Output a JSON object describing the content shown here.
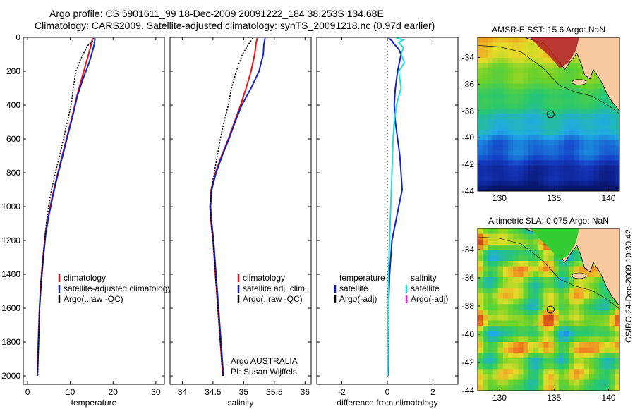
{
  "header": {
    "line1": "Argo profile: CS 5901611_99 18-Dec-2009 20091222_184 38.253S 134.68E",
    "line2": "Climatology: CARS2009. Satellite-adjusted climatology: synTS_20091218.nc (0.97d earlier)"
  },
  "side_label": "CSIRO 24-Dec-2009 10:30:42",
  "colors": {
    "climatology": "#ee1111",
    "satellite": "#1022cc",
    "argo": "#000000",
    "sat_salinity": "#22dddd",
    "argo_adj_salinity": "#dd22dd"
  },
  "chart_data": [
    {
      "type": "line",
      "name": "temperature-profile",
      "xlabel": "temperature",
      "ylabel": "",
      "xlim": [
        -1,
        32
      ],
      "ylim": [
        2050,
        0
      ],
      "xticks": [
        0,
        10,
        20,
        30
      ],
      "yticks": [
        0,
        200,
        400,
        600,
        800,
        1000,
        1200,
        1400,
        1600,
        1800,
        2000
      ],
      "legend": [
        "climatology",
        "satellite-adjusted climatology",
        "Argo(..raw -QC)"
      ],
      "series": [
        {
          "name": "climatology",
          "color": "#ee1111",
          "points": [
            [
              15.2,
              5
            ],
            [
              14.9,
              40
            ],
            [
              14.5,
              80
            ],
            [
              13.7,
              150
            ],
            [
              12.6,
              250
            ],
            [
              11.5,
              350
            ],
            [
              10.6,
              450
            ],
            [
              9.6,
              550
            ],
            [
              8.6,
              650
            ],
            [
              7.6,
              750
            ],
            [
              6.6,
              850
            ],
            [
              5.7,
              950
            ],
            [
              4.9,
              1050
            ],
            [
              4.2,
              1150
            ],
            [
              3.6,
              1300
            ],
            [
              3.1,
              1450
            ],
            [
              2.8,
              1600
            ],
            [
              2.5,
              1800
            ],
            [
              2.3,
              2000
            ]
          ]
        },
        {
          "name": "satellite-adjusted climatology",
          "color": "#1022cc",
          "points": [
            [
              15.8,
              5
            ],
            [
              15.6,
              40
            ],
            [
              15.2,
              80
            ],
            [
              14.4,
              150
            ],
            [
              12.9,
              250
            ],
            [
              11.6,
              350
            ],
            [
              10.7,
              450
            ],
            [
              9.7,
              550
            ],
            [
              8.7,
              650
            ],
            [
              7.7,
              750
            ],
            [
              6.7,
              850
            ],
            [
              5.8,
              950
            ],
            [
              5.0,
              1050
            ],
            [
              4.3,
              1150
            ],
            [
              3.7,
              1300
            ],
            [
              3.2,
              1450
            ],
            [
              2.8,
              1600
            ],
            [
              2.6,
              1800
            ],
            [
              2.3,
              2000
            ]
          ]
        },
        {
          "name": "Argo(..raw -QC)",
          "color": "#000000",
          "points": [
            [
              15.5,
              5
            ],
            [
              15.3,
              20
            ],
            [
              14.2,
              45
            ],
            [
              13.4,
              80
            ],
            [
              12.4,
              130
            ],
            [
              11.3,
              200
            ],
            [
              10.7,
              300
            ],
            [
              10.2,
              400
            ],
            [
              9.3,
              500
            ],
            [
              8.4,
              600
            ],
            [
              7.5,
              700
            ],
            [
              6.5,
              800
            ],
            [
              5.6,
              900
            ],
            [
              4.9,
              1000
            ],
            [
              4.4,
              1100
            ],
            [
              3.8,
              1250
            ],
            [
              3.3,
              1400
            ],
            [
              2.9,
              1550
            ],
            [
              2.7,
              1700
            ],
            [
              2.5,
              1850
            ],
            [
              2.4,
              2000
            ]
          ]
        }
      ]
    },
    {
      "type": "line",
      "name": "salinity-profile",
      "xlabel": "salinity",
      "ylabel": "",
      "xlim": [
        33.8,
        36.1
      ],
      "ylim": [
        2050,
        0
      ],
      "xticks": [
        34,
        34.5,
        35,
        35.5,
        36
      ],
      "legend": [
        "climatology",
        "satellite adj. clim.",
        "Argo(..raw -QC)"
      ],
      "annotation": [
        "Argo AUSTRALIA",
        "PI: Susan Wijffels"
      ],
      "series": [
        {
          "name": "climatology",
          "color": "#ee1111",
          "points": [
            [
              35.22,
              5
            ],
            [
              35.2,
              40
            ],
            [
              35.18,
              100
            ],
            [
              35.12,
              200
            ],
            [
              35.04,
              300
            ],
            [
              34.95,
              400
            ],
            [
              34.85,
              500
            ],
            [
              34.75,
              600
            ],
            [
              34.64,
              700
            ],
            [
              34.54,
              800
            ],
            [
              34.47,
              900
            ],
            [
              34.45,
              1000
            ],
            [
              34.47,
              1100
            ],
            [
              34.5,
              1200
            ],
            [
              34.54,
              1400
            ],
            [
              34.58,
              1600
            ],
            [
              34.62,
              1800
            ],
            [
              34.66,
              2000
            ]
          ]
        },
        {
          "name": "satellite adj. clim.",
          "color": "#1022cc",
          "points": [
            [
              35.35,
              5
            ],
            [
              35.33,
              40
            ],
            [
              35.32,
              100
            ],
            [
              35.25,
              200
            ],
            [
              35.12,
              300
            ],
            [
              34.97,
              400
            ],
            [
              34.86,
              500
            ],
            [
              34.76,
              600
            ],
            [
              34.65,
              700
            ],
            [
              34.55,
              800
            ],
            [
              34.48,
              900
            ],
            [
              34.46,
              1000
            ],
            [
              34.48,
              1100
            ],
            [
              34.51,
              1200
            ],
            [
              34.55,
              1400
            ],
            [
              34.59,
              1600
            ],
            [
              34.63,
              1800
            ],
            [
              34.67,
              2000
            ]
          ]
        },
        {
          "name": "Argo(..raw -QC)",
          "color": "#000000",
          "points": [
            [
              35.15,
              5
            ],
            [
              35.08,
              40
            ],
            [
              34.98,
              100
            ],
            [
              34.88,
              200
            ],
            [
              34.8,
              300
            ],
            [
              34.75,
              400
            ],
            [
              34.68,
              500
            ],
            [
              34.62,
              600
            ],
            [
              34.57,
              700
            ],
            [
              34.52,
              800
            ],
            [
              34.47,
              900
            ],
            [
              34.45,
              1000
            ],
            [
              34.47,
              1100
            ],
            [
              34.5,
              1200
            ],
            [
              34.54,
              1400
            ],
            [
              34.58,
              1600
            ],
            [
              34.62,
              1800
            ],
            [
              34.66,
              2000
            ]
          ]
        }
      ]
    },
    {
      "type": "line",
      "name": "difference-profile",
      "xlabel": "difference from climatology",
      "ylabel": "",
      "xlim": [
        -3.1,
        3.1
      ],
      "ylim": [
        2050,
        0
      ],
      "xticks": [
        -2,
        0,
        2
      ],
      "legend_left": [
        "temperature",
        "satellite",
        "Argo(-adj)"
      ],
      "legend_right": [
        "salinity",
        "satellite",
        "Argo(-adj)"
      ],
      "series": [
        {
          "name": "temperature satellite",
          "color": "#1022cc",
          "points": [
            [
              0.05,
              5
            ],
            [
              0.2,
              20
            ],
            [
              0.3,
              40
            ],
            [
              0.5,
              70
            ],
            [
              0.6,
              100
            ],
            [
              0.45,
              200
            ],
            [
              0.35,
              300
            ],
            [
              0.3,
              400
            ],
            [
              0.35,
              500
            ],
            [
              0.45,
              600
            ],
            [
              0.55,
              700
            ],
            [
              0.6,
              800
            ],
            [
              0.65,
              900
            ],
            [
              0.5,
              1000
            ],
            [
              0.35,
              1100
            ],
            [
              0.2,
              1200
            ],
            [
              0.1,
              1400
            ],
            [
              0.05,
              1600
            ],
            [
              0.03,
              2000
            ]
          ]
        },
        {
          "name": "salinity satellite",
          "color": "#22dddd",
          "points": [
            [
              0.4,
              5
            ],
            [
              0.7,
              15
            ],
            [
              0.5,
              30
            ],
            [
              0.7,
              60
            ],
            [
              0.6,
              100
            ],
            [
              0.75,
              150
            ],
            [
              0.5,
              200
            ],
            [
              0.6,
              300
            ],
            [
              0.4,
              400
            ],
            [
              0.3,
              500
            ],
            [
              0.25,
              600
            ],
            [
              0.2,
              800
            ],
            [
              0.15,
              1000
            ],
            [
              0.1,
              1200
            ],
            [
              0.05,
              1400
            ],
            [
              0.03,
              1700
            ],
            [
              0.02,
              2000
            ]
          ]
        }
      ]
    }
  ],
  "maps": [
    {
      "title": "AMSR-E SST: 15.6 Argo: NaN",
      "name": "sst-map",
      "xlim": [
        128,
        141
      ],
      "ylim": [
        -44,
        -32.5
      ],
      "xticks": [
        130,
        135,
        140
      ],
      "yticks": [
        -34,
        -36,
        -38,
        -40,
        -42,
        -44
      ],
      "marker": [
        134.68,
        -38.25
      ]
    },
    {
      "title": "Altimetric SLA: 0.075 Argo: NaN",
      "name": "sla-map",
      "xlim": [
        128,
        141
      ],
      "ylim": [
        -44,
        -32.5
      ],
      "xticks": [
        130,
        135,
        140
      ],
      "yticks": [
        -34,
        -36,
        -38,
        -40,
        -42,
        -44
      ],
      "marker": [
        134.68,
        -38.25
      ]
    }
  ]
}
